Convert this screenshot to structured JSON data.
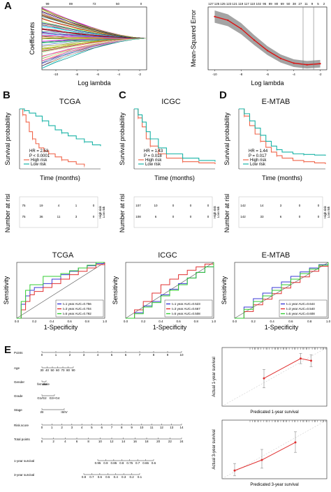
{
  "panel_labels": [
    "A",
    "B",
    "C",
    "D",
    "E"
  ],
  "chart_data": [
    {
      "id": "A1",
      "type": "line",
      "title": "",
      "xlabel": "Log lambda",
      "ylabel": "Coefficients",
      "xticks": [
        "-10",
        "-8",
        "-6",
        "-4",
        "-2"
      ],
      "top_ticks": [
        "99",
        "89",
        "72",
        "50",
        "0"
      ],
      "xlim": [
        -11,
        -2
      ]
    },
    {
      "id": "A2",
      "type": "line",
      "xlabel": "Log lambda",
      "ylabel": "Mean-Squared Error",
      "xticks": [
        "-10",
        "-8",
        "-6",
        "-4",
        "-2"
      ],
      "top_ticks": [
        "127",
        "125",
        "125",
        "123",
        "121",
        "119",
        "117",
        "110",
        "102",
        "95",
        "89",
        "80",
        "69",
        "50",
        "38",
        "27",
        "11",
        "9",
        "5",
        "2"
      ],
      "x": [
        -10,
        -9,
        -8,
        -7,
        -6,
        -5,
        -4,
        -3,
        -2
      ],
      "y": [
        0.95,
        0.88,
        0.72,
        0.5,
        0.3,
        0.15,
        0.06,
        0.03,
        0.05
      ],
      "vlines": [
        -3.3,
        -2.5
      ]
    },
    {
      "id": "B",
      "type": "line",
      "title": "TCGA",
      "xlabel": "Time (months)",
      "ylabel": "Survival probability",
      "annotations": [
        "HR = 2.53",
        "P < 0.0001"
      ],
      "series": [
        {
          "name": "High risk",
          "x": [
            0,
            2,
            4,
            6,
            8,
            10,
            12,
            15,
            18,
            22,
            26,
            30,
            35,
            40
          ],
          "y": [
            1,
            0.9,
            0.78,
            0.62,
            0.5,
            0.42,
            0.35,
            0.3,
            0.25,
            0.2,
            0.15,
            0.12,
            0.08,
            0.05
          ]
        },
        {
          "name": "Low risk",
          "x": [
            0,
            3,
            6,
            10,
            14,
            18,
            22,
            26,
            30,
            35,
            40,
            45,
            50
          ],
          "y": [
            1,
            0.97,
            0.93,
            0.88,
            0.8,
            0.72,
            0.65,
            0.6,
            0.55,
            0.5,
            0.45,
            0.4,
            0.38
          ]
        }
      ],
      "risk_table": {
        "label": "Number at risk",
        "rows": [
          [
            "75",
            "19",
            "4",
            "1",
            "0"
          ],
          [
            "75",
            "36",
            "11",
            "3",
            "0"
          ]
        ],
        "strata": [
          "High risk",
          "Low risk"
        ]
      }
    },
    {
      "id": "C",
      "type": "line",
      "title": "ICGC",
      "xlabel": "Time (months)",
      "ylabel": "Survival probability",
      "annotations": [
        "HR = 1.43",
        "P = 0.018"
      ],
      "series": [
        {
          "name": "High risk",
          "x": [
            0,
            5,
            10,
            15,
            20,
            30,
            40,
            60,
            80,
            100
          ],
          "y": [
            1,
            0.85,
            0.7,
            0.5,
            0.38,
            0.25,
            0.18,
            0.12,
            0.1,
            0.08
          ]
        },
        {
          "name": "Low risk",
          "x": [
            0,
            5,
            10,
            15,
            20,
            30,
            40,
            60,
            80,
            100
          ],
          "y": [
            1,
            0.9,
            0.78,
            0.62,
            0.5,
            0.35,
            0.25,
            0.18,
            0.14,
            0.12
          ]
        }
      ],
      "risk_table": {
        "label": "Number at risk",
        "rows": [
          [
            "107",
            "10",
            "0",
            "0",
            "0"
          ],
          [
            "108",
            "6",
            "0",
            "0",
            "0"
          ]
        ],
        "strata": [
          "High risk",
          "Low risk"
        ]
      }
    },
    {
      "id": "D",
      "type": "line",
      "title": "E-MTAB",
      "xlabel": "Time (months)",
      "ylabel": "Survival probability",
      "annotations": [
        "HR = 1.44",
        "P = 0.017"
      ],
      "series": [
        {
          "name": "High risk",
          "x": [
            0,
            5,
            10,
            15,
            20,
            25,
            30,
            35,
            40,
            50,
            60,
            70,
            80
          ],
          "y": [
            1,
            0.88,
            0.72,
            0.58,
            0.46,
            0.36,
            0.28,
            0.22,
            0.18,
            0.14,
            0.12,
            0.1,
            0.08
          ]
        },
        {
          "name": "Low risk",
          "x": [
            0,
            5,
            10,
            15,
            20,
            25,
            30,
            35,
            40,
            50,
            60,
            70,
            80
          ],
          "y": [
            1,
            0.92,
            0.8,
            0.68,
            0.56,
            0.46,
            0.38,
            0.32,
            0.28,
            0.25,
            0.24,
            0.23,
            0.22
          ]
        }
      ],
      "risk_table": {
        "label": "Number at risk",
        "rows": [
          [
            "142",
            "14",
            "3",
            "0",
            "0"
          ],
          [
            "142",
            "33",
            "6",
            "0",
            "0"
          ]
        ],
        "strata": [
          "High risk",
          "Low risk"
        ]
      }
    },
    {
      "id": "ROC_TCGA",
      "type": "line",
      "title": "TCGA",
      "xlabel": "1-Specificity",
      "ylabel": "Sensitivity",
      "xticks": [
        "0.0",
        "0.2",
        "0.4",
        "0.6",
        "0.8",
        "1.0"
      ],
      "legend": [
        "t=1 year   AUC=0.756",
        "t=3 year   AUC=0.704",
        "t=5 year   AUC=0.792"
      ],
      "series": [
        {
          "name": "t=1 year",
          "auc": 0.756,
          "color": "#3a3ad6",
          "x": [
            0,
            0.05,
            0.1,
            0.15,
            0.2,
            0.3,
            0.4,
            0.5,
            0.6,
            0.7,
            0.8,
            0.9,
            1
          ],
          "y": [
            0,
            0.25,
            0.4,
            0.5,
            0.55,
            0.62,
            0.7,
            0.78,
            0.84,
            0.9,
            0.94,
            0.98,
            1
          ]
        },
        {
          "name": "t=3 year",
          "auc": 0.704,
          "color": "#e03030",
          "x": [
            0,
            0.05,
            0.1,
            0.15,
            0.2,
            0.3,
            0.4,
            0.5,
            0.6,
            0.7,
            0.8,
            0.9,
            1
          ],
          "y": [
            0,
            0.15,
            0.3,
            0.42,
            0.48,
            0.55,
            0.62,
            0.7,
            0.78,
            0.84,
            0.9,
            0.96,
            1
          ]
        },
        {
          "name": "t=5 year",
          "auc": 0.792,
          "color": "#33cc33",
          "x": [
            0,
            0.05,
            0.1,
            0.15,
            0.2,
            0.3,
            0.4,
            0.5,
            0.6,
            0.7,
            0.8,
            0.9,
            1
          ],
          "y": [
            0,
            0.3,
            0.5,
            0.6,
            0.6,
            0.75,
            0.75,
            0.8,
            0.85,
            0.9,
            0.95,
            1,
            1
          ]
        }
      ]
    },
    {
      "id": "ROC_ICGC",
      "type": "line",
      "title": "ICGC",
      "xlabel": "1-Specificity",
      "ylabel": "Sensitivity",
      "xticks": [
        "0.0",
        "0.2",
        "0.4",
        "0.6",
        "0.8",
        "1.0"
      ],
      "legend": [
        "t=1 year   AUC=0.523",
        "t=3 year   AUC=0.667",
        "t=5 year   AUC=0.508"
      ],
      "series": [
        {
          "name": "t=1 year",
          "auc": 0.523,
          "color": "#3a3ad6",
          "x": [
            0,
            0.1,
            0.2,
            0.3,
            0.4,
            0.5,
            0.6,
            0.7,
            0.8,
            0.9,
            1
          ],
          "y": [
            0,
            0.1,
            0.22,
            0.3,
            0.42,
            0.52,
            0.62,
            0.72,
            0.82,
            0.92,
            1
          ]
        },
        {
          "name": "t=3 year",
          "auc": 0.667,
          "color": "#e03030",
          "x": [
            0,
            0.1,
            0.2,
            0.3,
            0.4,
            0.5,
            0.6,
            0.7,
            0.8,
            0.9,
            1
          ],
          "y": [
            0,
            0.15,
            0.3,
            0.45,
            0.6,
            0.7,
            0.78,
            0.86,
            0.92,
            0.97,
            1
          ]
        },
        {
          "name": "t=5 year",
          "auc": 0.508,
          "color": "#33cc33",
          "x": [
            0,
            0.1,
            0.2,
            0.3,
            0.4,
            0.5,
            0.6,
            0.7,
            0.8,
            0.9,
            1
          ],
          "y": [
            0,
            0.08,
            0.2,
            0.28,
            0.4,
            0.5,
            0.6,
            0.72,
            0.82,
            0.92,
            1
          ]
        }
      ]
    },
    {
      "id": "ROC_EMTAB",
      "type": "line",
      "title": "E-MTAB",
      "xlabel": "1-Specificity",
      "ylabel": "Sensitivity",
      "xticks": [
        "0.0",
        "0.2",
        "0.4",
        "0.6",
        "0.8",
        "1.0"
      ],
      "legend": [
        "t=1 year   AUC=0.644",
        "t=3 year   AUC=0.540",
        "t=5 year   AUC=0.608"
      ],
      "series": [
        {
          "name": "t=1 year",
          "auc": 0.644,
          "color": "#3a3ad6",
          "x": [
            0,
            0.1,
            0.2,
            0.3,
            0.4,
            0.5,
            0.6,
            0.7,
            0.8,
            0.9,
            1
          ],
          "y": [
            0,
            0.2,
            0.35,
            0.45,
            0.55,
            0.65,
            0.75,
            0.83,
            0.9,
            0.96,
            1
          ]
        },
        {
          "name": "t=3 year",
          "auc": 0.54,
          "color": "#e03030",
          "x": [
            0,
            0.1,
            0.2,
            0.3,
            0.4,
            0.5,
            0.6,
            0.7,
            0.8,
            0.9,
            1
          ],
          "y": [
            0,
            0.12,
            0.24,
            0.34,
            0.44,
            0.54,
            0.64,
            0.74,
            0.84,
            0.93,
            1
          ]
        },
        {
          "name": "t=5 year",
          "auc": 0.608,
          "color": "#33cc33",
          "x": [
            0,
            0.1,
            0.2,
            0.3,
            0.4,
            0.5,
            0.6,
            0.7,
            0.8,
            0.9,
            1
          ],
          "y": [
            0,
            0.16,
            0.3,
            0.4,
            0.5,
            0.6,
            0.7,
            0.8,
            0.88,
            0.95,
            1
          ]
        }
      ]
    },
    {
      "id": "Calib1",
      "type": "scatter",
      "xlabel": "Predicated 1-year survival",
      "ylabel": "Actual 1-year survival",
      "xlim": [
        0.2,
        1.0
      ],
      "ylim": [
        0.2,
        1.0
      ],
      "x": [
        0.52,
        0.8,
        0.88
      ],
      "y": [
        0.58,
        0.85,
        0.82
      ],
      "err_low": [
        0.45,
        0.78,
        0.74
      ],
      "err_high": [
        0.7,
        0.92,
        0.9
      ]
    },
    {
      "id": "Calib3",
      "type": "scatter",
      "xlabel": "Predicated 3-year survival",
      "ylabel": "Actual 3-year survival",
      "xlim": [
        0.0,
        1.0
      ],
      "ylim": [
        0.0,
        1.0
      ],
      "x": [
        0.12,
        0.38,
        0.7
      ],
      "y": [
        0.14,
        0.32,
        0.62
      ],
      "err_low": [
        0.05,
        0.18,
        0.45
      ],
      "err_high": [
        0.26,
        0.5,
        0.8
      ]
    }
  ],
  "nomogram": {
    "rows": [
      "Points",
      "Age",
      "Gender",
      "Grade",
      "Stage",
      "Risk.score",
      "Total points",
      "1-year survival",
      "3-year survival"
    ],
    "points_ticks": [
      "0",
      "1",
      "2",
      "3",
      "4",
      "5",
      "6",
      "7",
      "8",
      "9",
      "10"
    ],
    "age_ticks": [
      "30",
      "40",
      "50",
      "60",
      "70",
      "80",
      "90"
    ],
    "gender_ticks": [
      "female",
      "male"
    ],
    "grade_ticks": [
      "G1/G2",
      "G3+G4"
    ],
    "stage_ticks": [
      "I/II",
      "III/IV"
    ],
    "risk_ticks": [
      "0",
      "1",
      "2",
      "3",
      "4",
      "5",
      "6",
      "7",
      "8",
      "9",
      "10",
      "11",
      "12",
      "13",
      "14"
    ],
    "total_ticks": [
      "0",
      "2",
      "4",
      "6",
      "8",
      "10",
      "12",
      "14",
      "16",
      "18",
      "20",
      "22",
      "24"
    ],
    "surv1_ticks": [
      "0.95",
      "0.9",
      "0.85",
      "0.8",
      "0.75",
      "0.7",
      "0.65",
      "0.6"
    ],
    "surv3_ticks": [
      "0.8",
      "0.7",
      "0.6",
      "0.5",
      "0.4",
      "0.3",
      "0.2",
      "0.1"
    ]
  }
}
